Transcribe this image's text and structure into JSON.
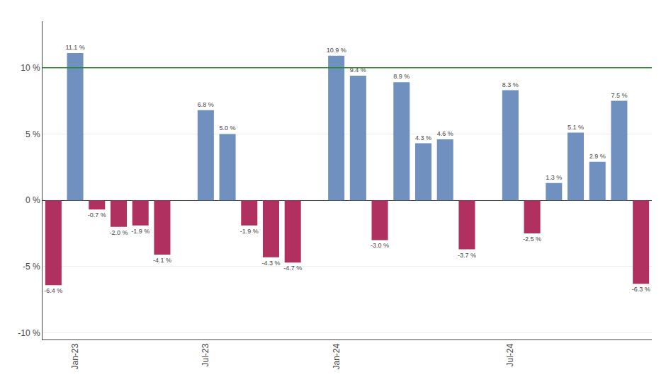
{
  "chart_data": {
    "type": "bar",
    "categories": [
      null,
      "Jan-23",
      null,
      null,
      null,
      null,
      null,
      "Jul-23",
      null,
      null,
      null,
      null,
      null,
      "Jan-24",
      null,
      null,
      null,
      null,
      null,
      null,
      null,
      "Jul-24",
      null,
      null,
      null,
      null,
      null,
      null
    ],
    "values": [
      -6.4,
      11.1,
      -0.7,
      -2.0,
      -1.9,
      -4.1,
      null,
      6.8,
      5.0,
      -1.9,
      -4.3,
      -4.7,
      null,
      10.9,
      9.4,
      -3.0,
      8.9,
      4.3,
      4.6,
      -3.7,
      null,
      8.3,
      -2.5,
      1.3,
      5.1,
      2.9,
      7.5,
      -6.3
    ],
    "value_labels": [
      "-6.4 %",
      "11.1 %",
      "-0.7 %",
      "-2.0 %",
      "-1.9 %",
      "-4.1 %",
      null,
      "6.8 %",
      "5.0 %",
      "-1.9 %",
      "-4.3 %",
      "-4.7 %",
      null,
      "10.9 %",
      "9.4 %",
      "-3.0 %",
      "8.9 %",
      "4.3 %",
      "4.6 %",
      "-3.7 %",
      null,
      "8.3 %",
      "-2.5 %",
      "1.3 %",
      "5.1 %",
      "2.9 %",
      "7.5 %",
      "-6.3 %"
    ],
    "colors": [
      "#b03060",
      "#7090c0",
      "#b03060",
      "#b03060",
      "#b03060",
      "#b03060",
      null,
      "#7090c0",
      "#7090c0",
      "#b03060",
      "#b03060",
      "#b03060",
      null,
      "#7090c0",
      "#7090c0",
      "#b03060",
      "#7090c0",
      "#7090c0",
      "#7090c0",
      "#b03060",
      null,
      "#7090c0",
      "#b03060",
      "#7090c0",
      "#7090c0",
      "#7090c0",
      "#7090c0",
      "#b03060"
    ],
    "data_labels": true,
    "reference_line": {
      "y": 10,
      "color": "#228B22"
    },
    "ylim": [
      -10.5,
      13.5
    ],
    "yticks": [
      {
        "value": -10,
        "label": "-10 %"
      },
      {
        "value": -5,
        "label": "-5 %"
      },
      {
        "value": 0,
        "label": "0 %"
      },
      {
        "value": 5,
        "label": "5 %"
      },
      {
        "value": 10,
        "label": "10 %"
      }
    ],
    "grid": true
  }
}
